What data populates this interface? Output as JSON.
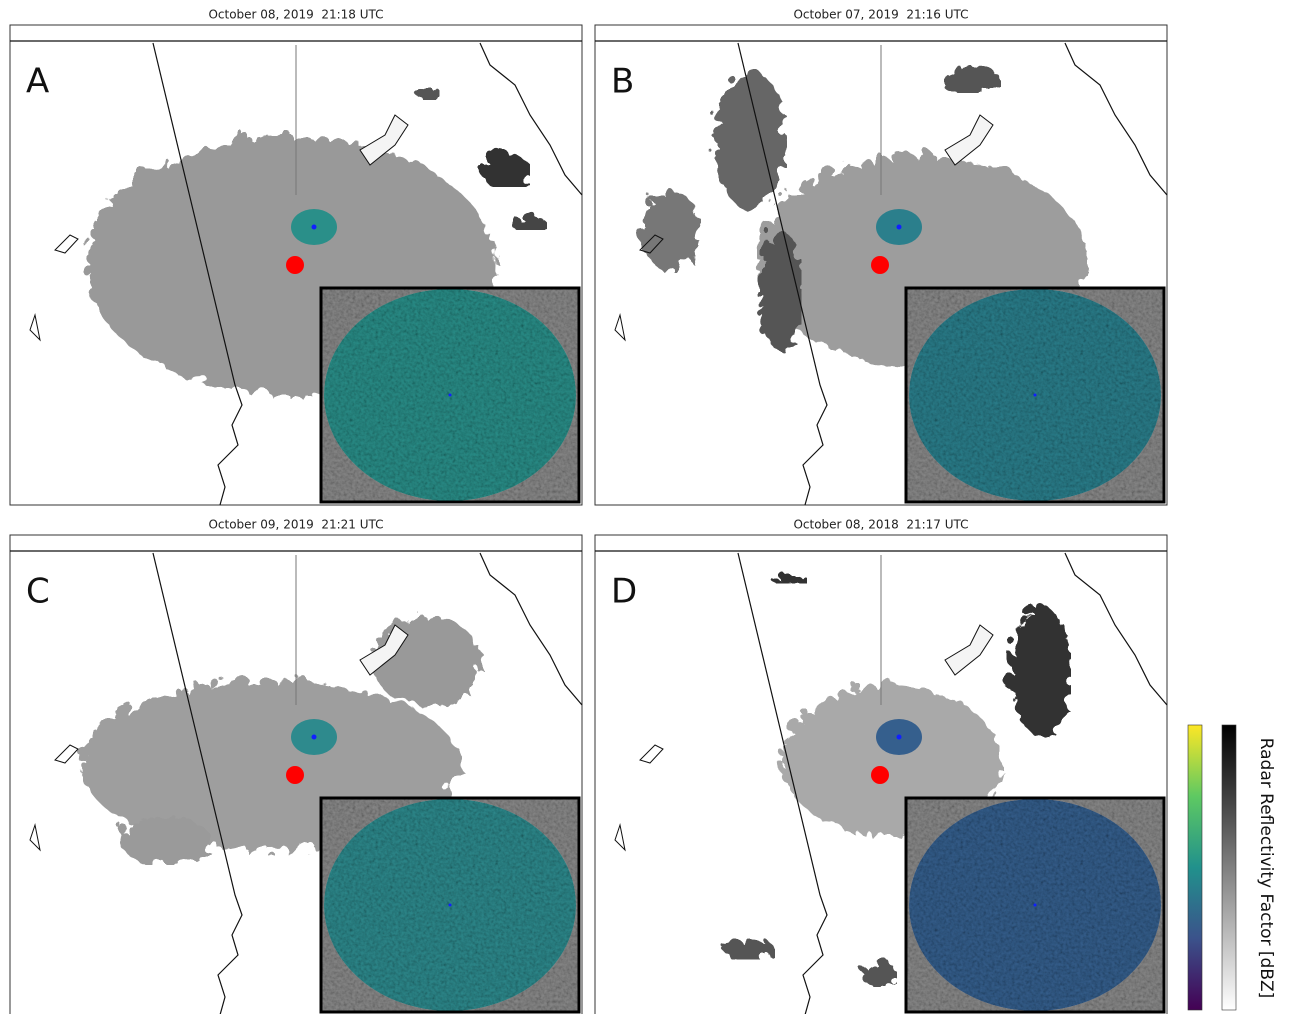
{
  "panels": [
    {
      "letter": "A",
      "title": "October 08, 2019  21:18 UTC"
    },
    {
      "letter": "B",
      "title": "October 07, 2019  21:16 UTC"
    },
    {
      "letter": "C",
      "title": "October 09, 2019  21:21 UTC"
    },
    {
      "letter": "D",
      "title": "October 08, 2018  21:17 UTC"
    }
  ],
  "colorbar": {
    "label": "Radar Reflectivity Factor [dBZ]"
  }
}
